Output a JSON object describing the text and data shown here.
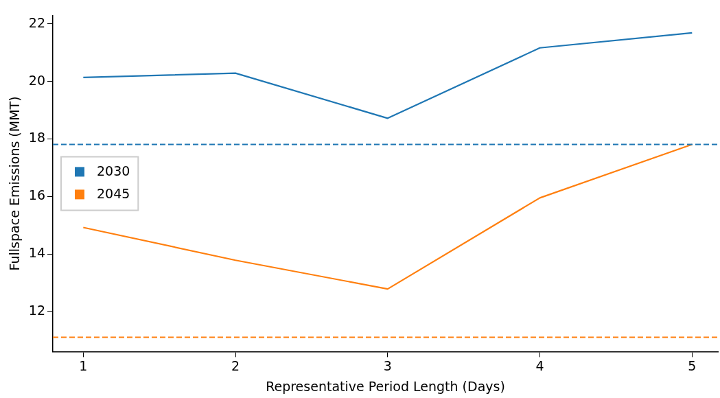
{
  "chart_data": {
    "type": "line",
    "xlabel": "Representative Period Length (Days)",
    "ylabel": "Fullspace Emissions (MMT)",
    "x": [
      1,
      2,
      3,
      4,
      5
    ],
    "series": [
      {
        "name": "2030",
        "color": "#1f77b4",
        "values": [
          20.14,
          20.29,
          18.72,
          21.17,
          21.69
        ]
      },
      {
        "name": "2045",
        "color": "#ff7f0e",
        "values": [
          14.92,
          13.78,
          12.78,
          15.95,
          17.81
        ]
      }
    ],
    "xlim": [
      0.8,
      5.17
    ],
    "xticks": [
      1,
      2,
      3,
      4,
      5
    ],
    "ylim": [
      10.6,
      22.3
    ],
    "yticks": [
      12,
      14,
      16,
      18,
      20,
      22
    ],
    "ref_lines": [
      {
        "axis": "y",
        "value": 17.81,
        "color": "#1f77b4",
        "line_style": "dashed"
      },
      {
        "axis": "y",
        "value": 11.1,
        "color": "#ff7f0e",
        "line_style": "dashed"
      }
    ],
    "grid": false,
    "legend": "left",
    "marker": "none",
    "line_style": "solid"
  }
}
